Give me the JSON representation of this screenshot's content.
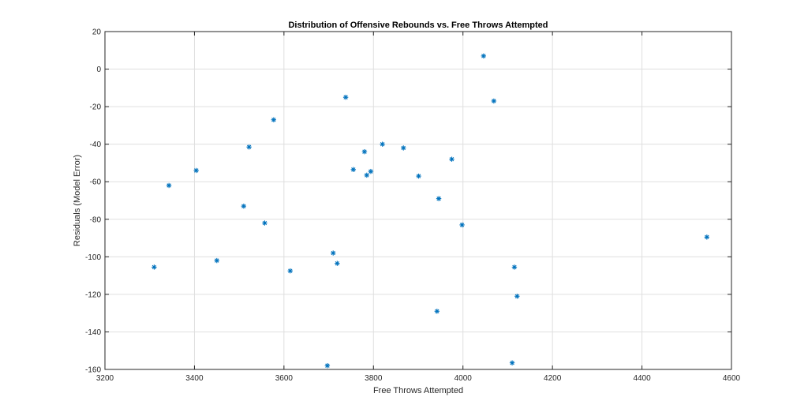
{
  "chart_data": {
    "type": "scatter",
    "title": "Distribution of Offensive Rebounds vs. Free Throws Attempted",
    "xlabel": "Free Throws Attempted",
    "ylabel": "Residuals (Model Error)",
    "xlim": [
      3200,
      4600
    ],
    "ylim": [
      -160,
      20
    ],
    "xticks": [
      3200,
      3400,
      3600,
      3800,
      4000,
      4200,
      4400,
      4600
    ],
    "yticks": [
      20,
      0,
      -20,
      -40,
      -60,
      -80,
      -100,
      -120,
      -140,
      -160
    ],
    "grid": true,
    "marker": "asterisk",
    "marker_color": "#0072BD",
    "series": [
      {
        "points": [
          {
            "x": 3310,
            "y": -105.5
          },
          {
            "x": 3343,
            "y": -62
          },
          {
            "x": 3404,
            "y": -54
          },
          {
            "x": 3450,
            "y": -102
          },
          {
            "x": 3510,
            "y": -73
          },
          {
            "x": 3522,
            "y": -41.5
          },
          {
            "x": 3557,
            "y": -82
          },
          {
            "x": 3577,
            "y": -27
          },
          {
            "x": 3614,
            "y": -107.5
          },
          {
            "x": 3697,
            "y": -158
          },
          {
            "x": 3710,
            "y": -98
          },
          {
            "x": 3719,
            "y": -103.5
          },
          {
            "x": 3738,
            "y": -15
          },
          {
            "x": 3755,
            "y": -53.5
          },
          {
            "x": 3780,
            "y": -44
          },
          {
            "x": 3785,
            "y": -56.5
          },
          {
            "x": 3794,
            "y": -54.5
          },
          {
            "x": 3820,
            "y": -40
          },
          {
            "x": 3867,
            "y": -42
          },
          {
            "x": 3901,
            "y": -57
          },
          {
            "x": 3942,
            "y": -129
          },
          {
            "x": 3946,
            "y": -69
          },
          {
            "x": 3975,
            "y": -48
          },
          {
            "x": 3998,
            "y": -83
          },
          {
            "x": 4046,
            "y": 7
          },
          {
            "x": 4069,
            "y": -17
          },
          {
            "x": 4110,
            "y": -156.5
          },
          {
            "x": 4115,
            "y": -105.5
          },
          {
            "x": 4121,
            "y": -121
          },
          {
            "x": 4545,
            "y": -89.5
          }
        ]
      }
    ]
  }
}
